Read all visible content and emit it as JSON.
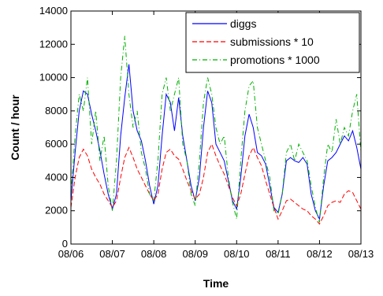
{
  "chart_data": {
    "type": "line",
    "title": "",
    "xlabel": "Time",
    "ylabel": "Count / hour",
    "ylim": [
      0,
      14000
    ],
    "xlim": [
      0,
      7
    ],
    "x_tick_labels": [
      "08/06",
      "08/07",
      "08/08",
      "08/09",
      "08/10",
      "08/11",
      "08/12",
      "08/13"
    ],
    "y_ticks": [
      0,
      2000,
      4000,
      6000,
      8000,
      10000,
      12000,
      14000
    ],
    "y_tick_labels": [
      "0",
      "2000",
      "4000",
      "6000",
      "8000",
      "10000",
      "12000",
      "14000"
    ],
    "grid": false,
    "legend_position": "top-right",
    "series": [
      {
        "name": "diggs",
        "color": "#0000ff",
        "style": "solid",
        "x": [
          0,
          0.1,
          0.2,
          0.3,
          0.4,
          0.5,
          0.6,
          0.7,
          0.8,
          0.9,
          1.0,
          1.1,
          1.2,
          1.3,
          1.4,
          1.5,
          1.6,
          1.7,
          1.8,
          1.9,
          2.0,
          2.1,
          2.2,
          2.3,
          2.4,
          2.5,
          2.6,
          2.7,
          2.8,
          2.9,
          3.0,
          3.1,
          3.2,
          3.3,
          3.4,
          3.5,
          3.6,
          3.7,
          3.8,
          3.9,
          4.0,
          4.1,
          4.2,
          4.3,
          4.4,
          4.5,
          4.6,
          4.7,
          4.8,
          4.9,
          5.0,
          5.1,
          5.2,
          5.3,
          5.4,
          5.5,
          5.6,
          5.7,
          5.8,
          5.9,
          6.0,
          6.1,
          6.2,
          6.3,
          6.4,
          6.5,
          6.6,
          6.7,
          6.8,
          6.9,
          7.0
        ],
        "y": [
          2600,
          5500,
          8000,
          9200,
          9000,
          7800,
          6800,
          5600,
          4200,
          3000,
          2100,
          3000,
          6500,
          8800,
          10800,
          8000,
          6800,
          6200,
          5000,
          3500,
          2400,
          3500,
          6500,
          9000,
          8500,
          6800,
          8800,
          6500,
          5000,
          3500,
          2600,
          4000,
          7000,
          9200,
          8500,
          6000,
          5500,
          5000,
          3800,
          2600,
          2100,
          4000,
          6500,
          7800,
          7000,
          5500,
          5300,
          4800,
          3500,
          2200,
          1900,
          3000,
          5000,
          5200,
          5000,
          4900,
          5200,
          4800,
          3000,
          2000,
          1500,
          3500,
          5000,
          5200,
          5500,
          6000,
          6500,
          6200,
          6800,
          5800,
          4500
        ]
      },
      {
        "name": "submissions * 10",
        "color": "#ff0000",
        "style": "dashed",
        "x": [
          0,
          0.1,
          0.2,
          0.3,
          0.4,
          0.5,
          0.6,
          0.7,
          0.8,
          0.9,
          1.0,
          1.1,
          1.2,
          1.3,
          1.4,
          1.5,
          1.6,
          1.7,
          1.8,
          1.9,
          2.0,
          2.1,
          2.2,
          2.3,
          2.4,
          2.5,
          2.6,
          2.7,
          2.8,
          2.9,
          3.0,
          3.1,
          3.2,
          3.3,
          3.4,
          3.5,
          3.6,
          3.7,
          3.8,
          3.9,
          4.0,
          4.1,
          4.2,
          4.3,
          4.4,
          4.5,
          4.6,
          4.7,
          4.8,
          4.9,
          5.0,
          5.1,
          5.2,
          5.3,
          5.4,
          5.5,
          5.6,
          5.7,
          5.8,
          5.9,
          6.0,
          6.1,
          6.2,
          6.3,
          6.4,
          6.5,
          6.6,
          6.7,
          6.8,
          6.9,
          7.0
        ],
        "y": [
          2200,
          4000,
          5200,
          5700,
          5300,
          4500,
          4000,
          3600,
          3000,
          2600,
          2200,
          2600,
          4000,
          5200,
          5800,
          5200,
          4500,
          4000,
          3500,
          3000,
          2600,
          3000,
          4500,
          5500,
          5700,
          5300,
          5100,
          4500,
          3800,
          3200,
          2700,
          3000,
          4000,
          5500,
          6000,
          5300,
          4700,
          4200,
          3500,
          2800,
          2300,
          3000,
          4200,
          5300,
          5800,
          5200,
          4700,
          3800,
          3000,
          2200,
          1500,
          2000,
          2600,
          2700,
          2500,
          2300,
          2100,
          2000,
          1700,
          1500,
          1200,
          1700,
          2300,
          2500,
          2600,
          2500,
          3000,
          3200,
          3100,
          2600,
          2100
        ]
      },
      {
        "name": "promotions * 1000",
        "color": "#00b000",
        "style": "dashdot",
        "x": [
          0,
          0.1,
          0.2,
          0.3,
          0.4,
          0.5,
          0.6,
          0.7,
          0.8,
          0.9,
          1.0,
          1.1,
          1.2,
          1.3,
          1.4,
          1.5,
          1.6,
          1.7,
          1.8,
          1.9,
          2.0,
          2.1,
          2.2,
          2.3,
          2.4,
          2.5,
          2.6,
          2.7,
          2.8,
          2.9,
          3.0,
          3.1,
          3.2,
          3.3,
          3.4,
          3.5,
          3.6,
          3.7,
          3.8,
          3.9,
          4.0,
          4.1,
          4.2,
          4.3,
          4.4,
          4.5,
          4.6,
          4.7,
          4.8,
          4.9,
          5.0,
          5.1,
          5.2,
          5.3,
          5.4,
          5.5,
          5.6,
          5.7,
          5.8,
          5.9,
          6.0,
          6.1,
          6.2,
          6.3,
          6.4,
          6.5,
          6.6,
          6.7,
          6.8,
          6.9,
          7.0
        ],
        "y": [
          3000,
          6500,
          9000,
          8000,
          10000,
          6000,
          8000,
          5000,
          6500,
          3500,
          2000,
          5000,
          10000,
          12500,
          9000,
          7000,
          8000,
          5500,
          4500,
          3000,
          2600,
          5000,
          9000,
          10000,
          8000,
          9000,
          10000,
          6000,
          5000,
          3000,
          2300,
          5000,
          8500,
          10000,
          9000,
          7000,
          6000,
          6500,
          4000,
          2500,
          1500,
          5000,
          8000,
          9500,
          9800,
          7000,
          6000,
          5000,
          4000,
          2000,
          1800,
          3000,
          5500,
          6000,
          5000,
          6000,
          5500,
          5000,
          3500,
          2200,
          1300,
          4000,
          6000,
          5500,
          7500,
          6000,
          7000,
          6500,
          8000,
          9000,
          5500
        ]
      }
    ]
  }
}
